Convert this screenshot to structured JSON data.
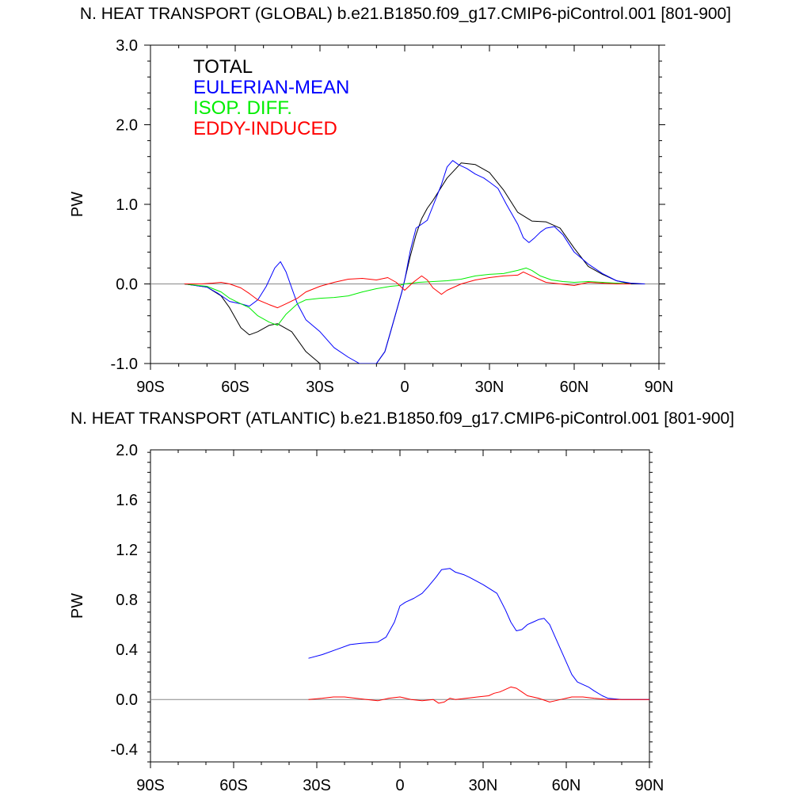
{
  "chart_data": [
    {
      "type": "line",
      "title": "N. HEAT TRANSPORT (GLOBAL) b.e21.B1850.f09_g17.CMIP6-piControl.001 [801-900]",
      "xlabel": "",
      "ylabel": "PW",
      "xlim": [
        -90,
        90
      ],
      "ylim": [
        -1.0,
        3.0
      ],
      "x_ticks": [
        -90,
        -60,
        -30,
        0,
        30,
        60,
        90
      ],
      "x_tick_labels": [
        "90S",
        "60S",
        "30S",
        "0",
        "30N",
        "60N",
        "90N"
      ],
      "y_ticks": [
        -1.0,
        0.0,
        1.0,
        2.0,
        3.0
      ],
      "y_tick_labels": [
        "-1.0",
        "0.0",
        "1.0",
        "2.0",
        "3.0"
      ],
      "zero_line": true,
      "legend": {
        "placement": "top-left",
        "entries": [
          "TOTAL",
          "EULERIAN-MEAN",
          "ISOP. DIFF.",
          "EDDY-INDUCED"
        ]
      },
      "series": [
        {
          "name": "TOTAL",
          "color": "#000000",
          "x": [
            -78,
            -70,
            -65,
            -62,
            -58,
            -55,
            -52,
            -48,
            -45,
            -40,
            -35,
            -30,
            -25,
            -20,
            -16,
            -14,
            -10,
            -7,
            -5,
            -3,
            -1,
            0,
            2,
            4,
            6,
            8,
            10,
            15,
            20,
            25,
            30,
            35,
            40,
            45,
            50,
            55,
            60,
            65,
            70,
            75,
            80,
            85
          ],
          "y": [
            0,
            -0.04,
            -0.15,
            -0.3,
            -0.55,
            -0.64,
            -0.6,
            -0.52,
            -0.5,
            -0.6,
            -0.85,
            -1.0,
            -1.0,
            -1.0,
            -1.0,
            -1.0,
            -1.0,
            -0.85,
            -0.6,
            -0.35,
            -0.1,
            0.05,
            0.35,
            0.62,
            0.82,
            0.95,
            1.05,
            1.33,
            1.52,
            1.5,
            1.4,
            1.18,
            0.9,
            0.79,
            0.78,
            0.7,
            0.45,
            0.22,
            0.12,
            0.04,
            0.0,
            0.0
          ]
        },
        {
          "name": "EULERIAN-MEAN",
          "color": "#0000ff",
          "x": [
            -78,
            -70,
            -66,
            -62,
            -58,
            -55,
            -52,
            -49,
            -46,
            -44,
            -42,
            -40,
            -38,
            -35,
            -30,
            -25,
            -20,
            -16,
            -10,
            -7,
            -5,
            -3,
            -1,
            0,
            2,
            4,
            6,
            8,
            10,
            13,
            15,
            17,
            19,
            22,
            25,
            28,
            30,
            33,
            36,
            40,
            42,
            44,
            46,
            48,
            50,
            53,
            56,
            60,
            65,
            70,
            75,
            80,
            85
          ],
          "y": [
            0,
            -0.04,
            -0.12,
            -0.22,
            -0.25,
            -0.28,
            -0.2,
            -0.03,
            0.2,
            0.28,
            0.15,
            -0.05,
            -0.25,
            -0.45,
            -0.6,
            -0.8,
            -0.92,
            -1.0,
            -1.0,
            -0.85,
            -0.6,
            -0.35,
            -0.1,
            0.05,
            0.42,
            0.7,
            0.75,
            0.8,
            0.98,
            1.25,
            1.47,
            1.55,
            1.5,
            1.45,
            1.38,
            1.33,
            1.28,
            1.2,
            1.0,
            0.75,
            0.58,
            0.52,
            0.58,
            0.65,
            0.7,
            0.72,
            0.62,
            0.4,
            0.25,
            0.13,
            0.04,
            0.01,
            0.0
          ]
        },
        {
          "name": "ISOP. DIFF.",
          "color": "#00ee00",
          "x": [
            -78,
            -70,
            -65,
            -62,
            -58,
            -55,
            -52,
            -48,
            -45,
            -42,
            -38,
            -35,
            -30,
            -25,
            -20,
            -15,
            -10,
            -5,
            -2,
            0,
            5,
            10,
            15,
            20,
            25,
            30,
            35,
            40,
            43,
            45,
            48,
            52,
            56,
            60,
            65,
            70,
            75,
            80
          ],
          "y": [
            0,
            -0.03,
            -0.1,
            -0.18,
            -0.25,
            -0.3,
            -0.4,
            -0.48,
            -0.52,
            -0.38,
            -0.25,
            -0.2,
            -0.18,
            -0.17,
            -0.15,
            -0.1,
            -0.06,
            -0.03,
            -0.02,
            0.0,
            0.02,
            0.03,
            0.04,
            0.06,
            0.1,
            0.12,
            0.13,
            0.17,
            0.2,
            0.17,
            0.1,
            0.05,
            0.03,
            0.02,
            0.03,
            0.02,
            0.01,
            0.0
          ]
        },
        {
          "name": "EDDY-INDUCED",
          "color": "#ff0000",
          "x": [
            -78,
            -72,
            -68,
            -65,
            -62,
            -58,
            -55,
            -52,
            -48,
            -45,
            -42,
            -38,
            -35,
            -30,
            -25,
            -20,
            -15,
            -10,
            -6,
            -3,
            0,
            3,
            6,
            8,
            10,
            13,
            15,
            20,
            25,
            30,
            35,
            40,
            42,
            45,
            50,
            55,
            60,
            65,
            70,
            75,
            80
          ],
          "y": [
            0,
            0.0,
            0.01,
            0.02,
            0.0,
            -0.05,
            -0.12,
            -0.2,
            -0.26,
            -0.3,
            -0.25,
            -0.18,
            -0.1,
            -0.03,
            0.02,
            0.06,
            0.07,
            0.05,
            0.08,
            0.02,
            -0.08,
            0.02,
            0.1,
            0.05,
            -0.05,
            -0.13,
            -0.08,
            0.0,
            0.05,
            0.08,
            0.1,
            0.11,
            0.15,
            0.1,
            0.02,
            0.0,
            -0.02,
            0.02,
            0.01,
            0.0,
            0.0
          ]
        }
      ]
    },
    {
      "type": "line",
      "title": "N. HEAT TRANSPORT (ATLANTIC) b.e21.B1850.f09_g17.CMIP6-piControl.001 [801-900]",
      "xlabel": "",
      "ylabel": "PW",
      "xlim": [
        -90,
        90
      ],
      "ylim": [
        -0.5,
        2.0
      ],
      "x_ticks": [
        -90,
        -60,
        -30,
        0,
        30,
        60,
        90
      ],
      "x_tick_labels": [
        "90S",
        "60S",
        "30S",
        "0",
        "30N",
        "60N",
        "90N"
      ],
      "y_ticks": [
        -0.4,
        0.0,
        0.4,
        0.8,
        1.2,
        1.6,
        2.0
      ],
      "y_tick_labels": [
        "-0.4",
        "0.0",
        "0.4",
        "0.8",
        "1.2",
        "1.6",
        "2.0"
      ],
      "zero_line": true,
      "series": [
        {
          "name": "EULERIAN-MEAN",
          "color": "#0000ff",
          "x": [
            -33,
            -28,
            -23,
            -18,
            -14,
            -8,
            -5,
            -2,
            0,
            2,
            5,
            8,
            10,
            13,
            15,
            18,
            20,
            23,
            25,
            30,
            35,
            38,
            40,
            42,
            44,
            46,
            48,
            50,
            52,
            54,
            56,
            60,
            62,
            64,
            66,
            68,
            70,
            73,
            75,
            80,
            85,
            90
          ],
          "y": [
            0.33,
            0.36,
            0.4,
            0.44,
            0.45,
            0.46,
            0.5,
            0.62,
            0.75,
            0.78,
            0.81,
            0.85,
            0.9,
            0.98,
            1.04,
            1.05,
            1.02,
            1.0,
            0.98,
            0.92,
            0.85,
            0.72,
            0.62,
            0.55,
            0.56,
            0.6,
            0.62,
            0.64,
            0.65,
            0.6,
            0.5,
            0.3,
            0.2,
            0.14,
            0.12,
            0.1,
            0.07,
            0.03,
            0.01,
            0.0,
            0.0,
            0.0
          ]
        },
        {
          "name": "EDDY-INDUCED",
          "color": "#ff0000",
          "x": [
            -33,
            -28,
            -24,
            -20,
            -16,
            -12,
            -8,
            -4,
            0,
            4,
            8,
            12,
            14,
            16,
            18,
            20,
            24,
            28,
            32,
            34,
            36,
            38,
            40,
            42,
            44,
            46,
            50,
            54,
            56,
            58,
            60,
            62,
            66,
            70,
            75,
            80,
            85,
            90
          ],
          "y": [
            0.0,
            0.01,
            0.02,
            0.02,
            0.01,
            0.0,
            -0.01,
            0.01,
            0.02,
            0.0,
            -0.01,
            0.0,
            -0.03,
            -0.02,
            0.01,
            0.0,
            0.01,
            0.02,
            0.03,
            0.05,
            0.06,
            0.08,
            0.1,
            0.09,
            0.06,
            0.03,
            0.01,
            -0.02,
            -0.01,
            0.0,
            0.01,
            0.02,
            0.02,
            0.01,
            0.0,
            0.0,
            0.0,
            0.0
          ]
        }
      ]
    }
  ]
}
